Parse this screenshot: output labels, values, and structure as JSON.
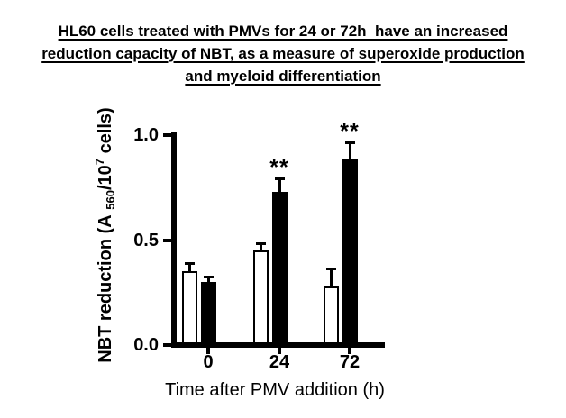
{
  "title": {
    "lines": [
      "HL60 cells treated with PMVs for 24 or 72h  have an increased",
      "reduction capacity of NBT, as a measure of superoxide production",
      "and myeloid differentiation"
    ]
  },
  "chart_data": {
    "type": "bar",
    "categories": [
      "0",
      "24",
      "72"
    ],
    "series": [
      {
        "name": "open-bars-control",
        "fill": "#ffffff",
        "outline": "#000000",
        "values": [
          0.35,
          0.45,
          0.28
        ],
        "errors_plus": [
          0.04,
          0.035,
          0.085
        ]
      },
      {
        "name": "filled-bars-PMV-treated",
        "fill": "#000000",
        "outline": "#000000",
        "values": [
          0.3,
          0.73,
          0.89
        ],
        "errors_plus": [
          0.025,
          0.065,
          0.075
        ]
      }
    ],
    "annotations": [
      {
        "text": "**",
        "category_index": 1,
        "series_index": 1
      },
      {
        "text": "**",
        "category_index": 2,
        "series_index": 1
      }
    ],
    "xlabel": "Time after PMV addition (h)",
    "ylabel_text": "NBT reduction (A 560/10^7 cells)",
    "ylabel": {
      "pre": "NBT reduction (A ",
      "sub": "560",
      "mid": "/10",
      "sup": "7",
      "post": " cells)"
    },
    "yticks": [
      {
        "label": "0.0",
        "value": 0.0
      },
      {
        "label": "0.5",
        "value": 0.5
      },
      {
        "label": "1.0",
        "value": 1.0
      }
    ],
    "ylim": [
      0.0,
      1.0
    ],
    "grid": false,
    "legend": "none",
    "error_bars": "plus-only-with-caps"
  },
  "colors": {
    "ink": "#000000",
    "background": "#ffffff"
  }
}
